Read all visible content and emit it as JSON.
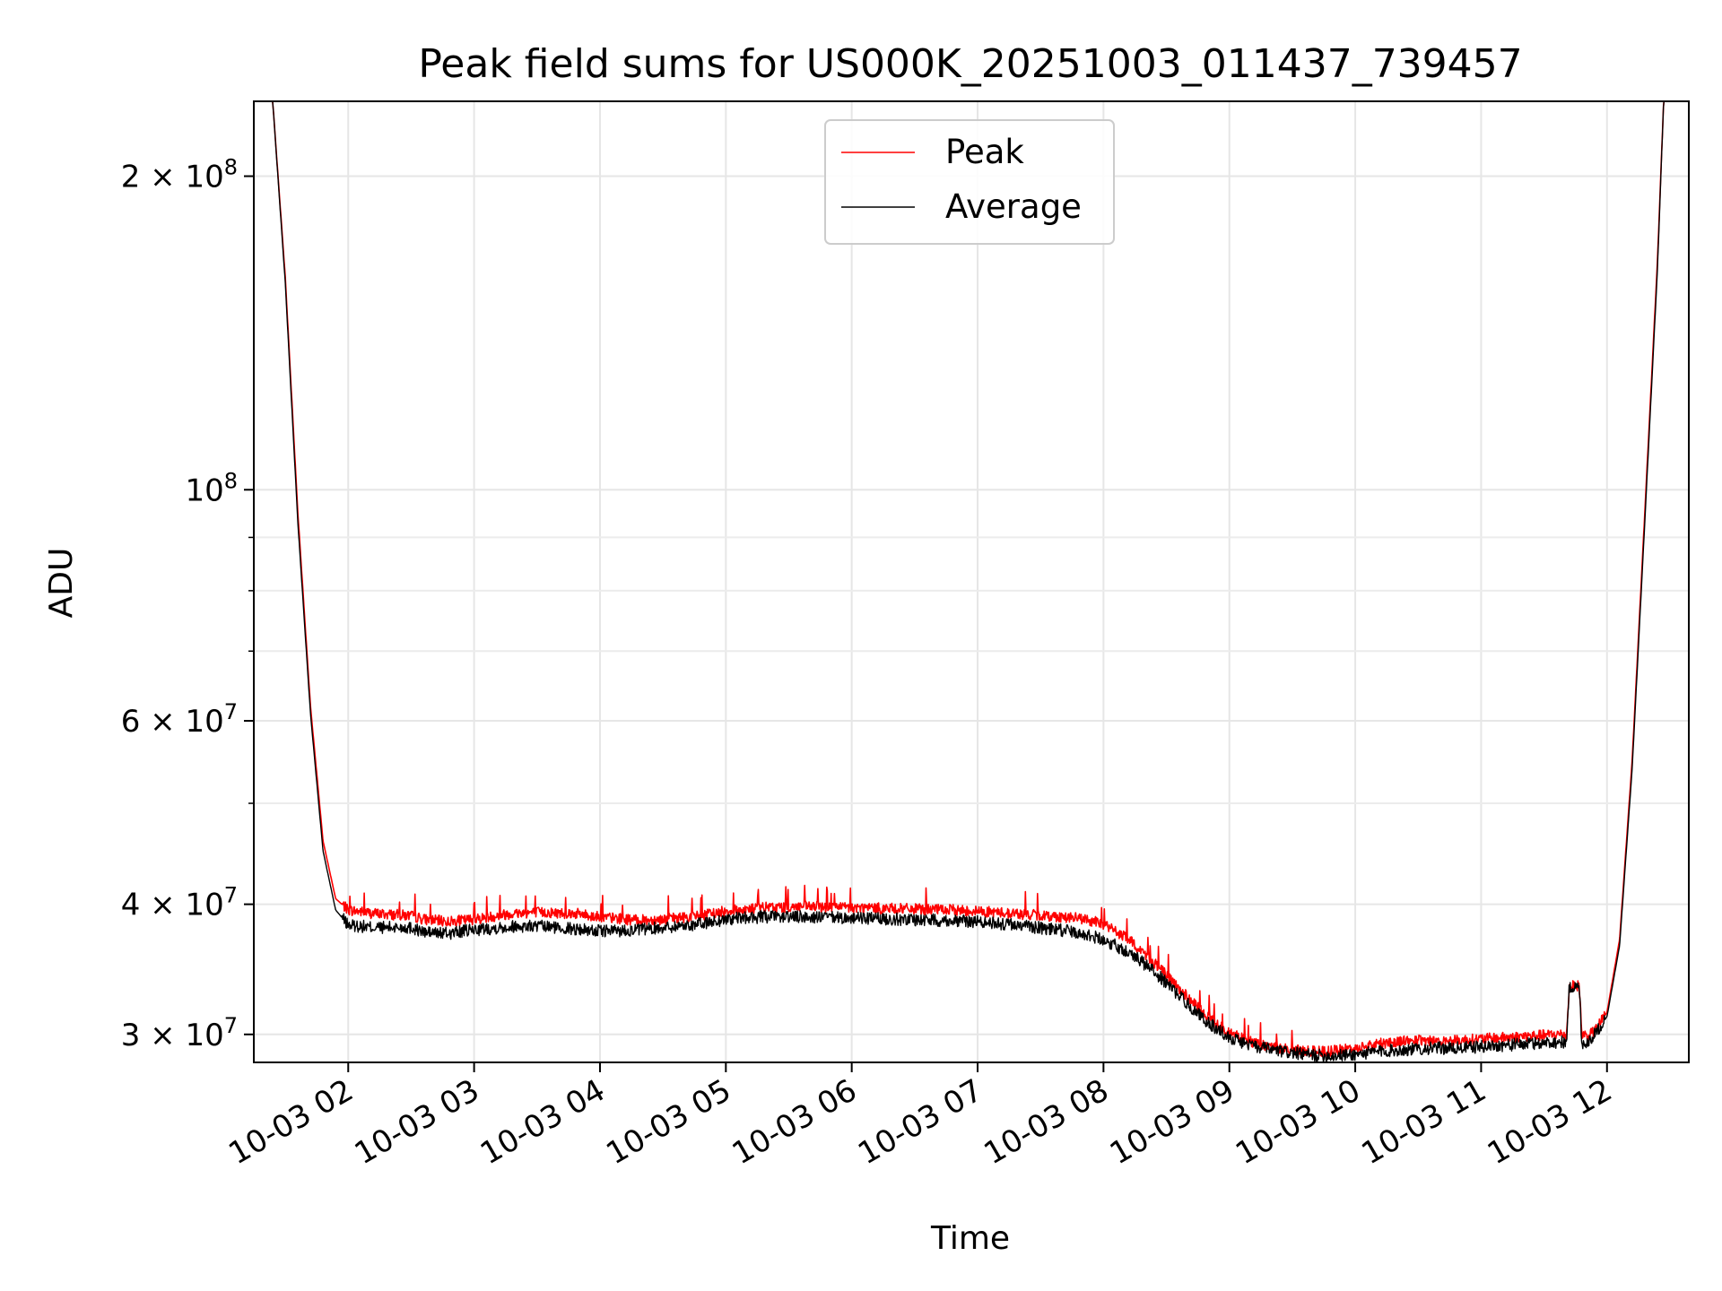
{
  "chart_data": {
    "type": "line",
    "title": "Peak field sums for US000K_20251003_011437_739457",
    "xlabel": "Time",
    "ylabel": "ADU",
    "yscale": "log",
    "ylim": [
      28200000,
      236000000
    ],
    "xlim_hours": [
      1.25,
      12.65
    ],
    "grid": true,
    "legend_position": "upper-center",
    "x_tick_labels": [
      "10-03 02",
      "10-03 03",
      "10-03 04",
      "10-03 05",
      "10-03 06",
      "10-03 07",
      "10-03 08",
      "10-03 09",
      "10-03 10",
      "10-03 11",
      "10-03 12"
    ],
    "x_tick_hours": [
      2,
      3,
      4,
      5,
      6,
      7,
      8,
      9,
      10,
      11,
      12
    ],
    "y_ticks": [
      {
        "value": 30000000,
        "mant": "3",
        "exp": "7"
      },
      {
        "value": 40000000,
        "mant": "4",
        "exp": "7"
      },
      {
        "value": 60000000,
        "mant": "6",
        "exp": "7"
      },
      {
        "value": 100000000,
        "mant": "",
        "exp": "8"
      },
      {
        "value": 200000000,
        "mant": "2",
        "exp": "8"
      }
    ],
    "y_minor_ticks": [
      50000000,
      70000000,
      80000000,
      90000000
    ],
    "series": [
      {
        "name": "Peak",
        "color": "#ff0000",
        "x_hours": [
          1.3,
          1.4,
          1.5,
          1.6,
          1.7,
          1.8,
          1.9,
          2.0,
          2.2,
          2.5,
          2.6,
          2.8,
          3.0,
          3.3,
          3.5,
          3.8,
          4.0,
          4.3,
          4.5,
          4.8,
          5.0,
          5.3,
          5.6,
          6.0,
          6.4,
          6.8,
          7.0,
          7.4,
          7.8,
          8.0,
          8.2,
          8.4,
          8.6,
          8.8,
          9.0,
          9.2,
          9.4,
          9.6,
          9.8,
          10.0,
          10.2,
          10.4,
          10.6,
          10.8,
          11.0,
          11.2,
          11.4,
          11.6,
          11.68,
          11.7,
          11.78,
          11.8,
          11.85,
          11.9,
          12.0,
          12.1,
          12.2,
          12.3,
          12.4,
          12.45,
          12.5,
          12.65
        ],
        "values": [
          236000000,
          236000000,
          160000000,
          95000000,
          62000000,
          46000000,
          40500000,
          39500000,
          39200000,
          39000000,
          38700000,
          38500000,
          38700000,
          39200000,
          39300000,
          39200000,
          38900000,
          38600000,
          38700000,
          39000000,
          39400000,
          39700000,
          39800000,
          39700000,
          39600000,
          39500000,
          39400000,
          39100000,
          38800000,
          38300000,
          37000000,
          35200000,
          33200000,
          31400000,
          30100000,
          29400000,
          29100000,
          28900000,
          28900000,
          29100000,
          29400000,
          29600000,
          29600000,
          29600000,
          29700000,
          29800000,
          29900000,
          30000000,
          30000000,
          33400000,
          33400000,
          30000000,
          29900000,
          30200000,
          31500000,
          37000000,
          55000000,
          95000000,
          165000000,
          236000000,
          236000000,
          236000000
        ]
      },
      {
        "name": "Average",
        "color": "#000000",
        "x_hours": [
          1.3,
          1.4,
          1.5,
          1.6,
          1.7,
          1.8,
          1.9,
          2.0,
          2.2,
          2.5,
          2.6,
          2.8,
          3.0,
          3.3,
          3.5,
          3.8,
          4.0,
          4.3,
          4.5,
          4.8,
          5.0,
          5.3,
          5.6,
          6.0,
          6.4,
          6.8,
          7.0,
          7.4,
          7.8,
          8.0,
          8.2,
          8.4,
          8.6,
          8.8,
          9.0,
          9.2,
          9.4,
          9.6,
          9.8,
          10.0,
          10.2,
          10.4,
          10.6,
          10.8,
          11.0,
          11.2,
          11.4,
          11.6,
          11.68,
          11.7,
          11.78,
          11.8,
          11.85,
          11.9,
          12.0,
          12.1,
          12.2,
          12.3,
          12.4,
          12.45,
          12.5,
          12.65
        ],
        "values": [
          236000000,
          236000000,
          158000000,
          93000000,
          61000000,
          45000000,
          39500000,
          38200000,
          38000000,
          38000000,
          37600000,
          37500000,
          37800000,
          38100000,
          38100000,
          37900000,
          37700000,
          37800000,
          38000000,
          38300000,
          38700000,
          38900000,
          38900000,
          38800000,
          38700000,
          38600000,
          38500000,
          38100000,
          37600000,
          37000000,
          36000000,
          34500000,
          32700000,
          31000000,
          29800000,
          29200000,
          28900000,
          28700000,
          28600000,
          28700000,
          28900000,
          29000000,
          29100000,
          29100000,
          29200000,
          29300000,
          29400000,
          29500000,
          29500000,
          33300000,
          33300000,
          29400000,
          29500000,
          30000000,
          31200000,
          36500000,
          54000000,
          93000000,
          162000000,
          236000000,
          236000000,
          236000000
        ]
      }
    ]
  }
}
